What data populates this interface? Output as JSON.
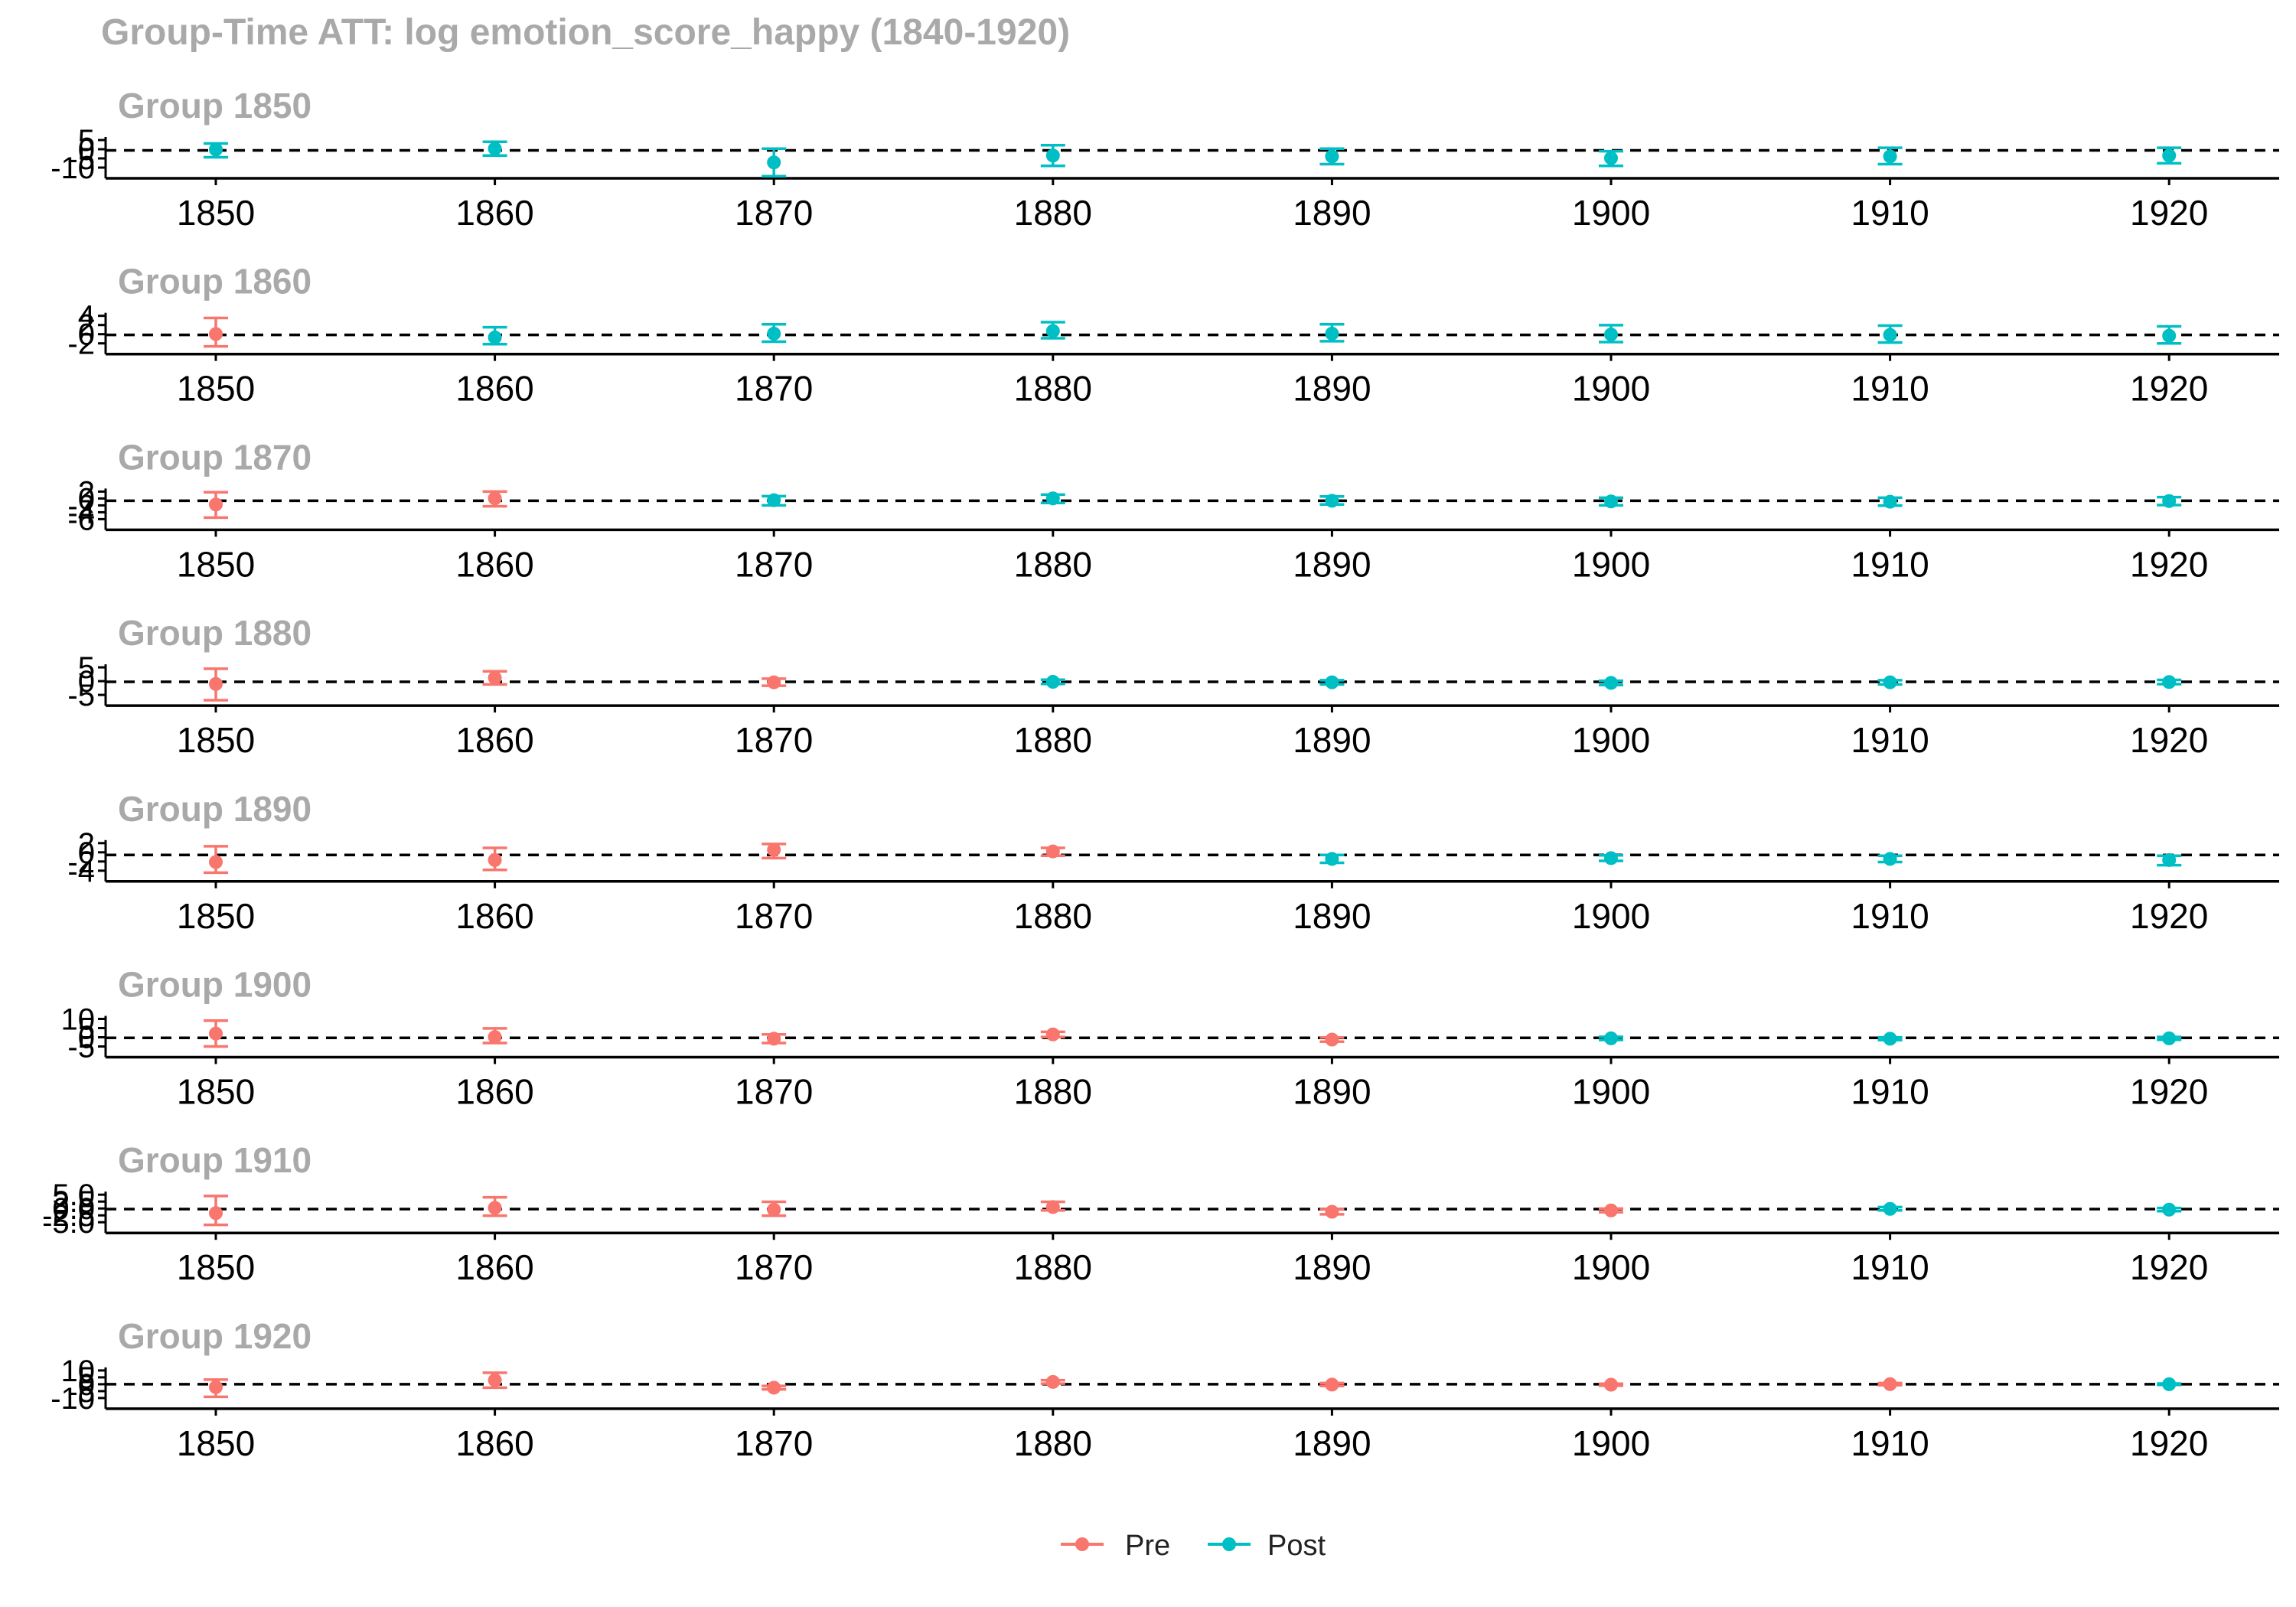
{
  "chart_data": {
    "type": "scatter",
    "title": "Group-Time ATT: log emotion_score_happy (1840-1920)",
    "x_ticks": [
      "1850",
      "1860",
      "1870",
      "1880",
      "1890",
      "1900",
      "1910",
      "1920"
    ],
    "reference_line_y": 0,
    "legend": {
      "position": "bottom",
      "items": [
        {
          "label": "Pre",
          "color": "#F8766D"
        },
        {
          "label": "Post",
          "color": "#00BFC4"
        }
      ]
    },
    "colors": {
      "pre": "#F8766D",
      "post": "#00BFC4",
      "point": "#555555"
    },
    "panels": [
      {
        "title": "Group 1850",
        "ylim": [
          -10,
          6
        ],
        "y_ticks": [
          "5",
          "0",
          "-5",
          "-10"
        ],
        "points": [
          {
            "x": 1850,
            "y": 0.5,
            "lo": -4,
            "hi": 4,
            "period": "Post"
          },
          {
            "x": 1860,
            "y": 1.0,
            "lo": -3,
            "hi": 5,
            "period": "Post"
          },
          {
            "x": 1870,
            "y": -7.0,
            "lo": -15,
            "hi": 1,
            "period": "Post"
          },
          {
            "x": 1880,
            "y": -3.0,
            "lo": -9,
            "hi": 3,
            "period": "Post"
          },
          {
            "x": 1890,
            "y": -3.5,
            "lo": -8,
            "hi": 1,
            "period": "Post"
          },
          {
            "x": 1900,
            "y": -4.5,
            "lo": -9,
            "hi": -0.5,
            "period": "Post"
          },
          {
            "x": 1910,
            "y": -3.5,
            "lo": -8,
            "hi": 1.5,
            "period": "Post"
          },
          {
            "x": 1920,
            "y": -3.0,
            "lo": -7.5,
            "hi": 1.5,
            "period": "Post"
          }
        ]
      },
      {
        "title": "Group 1860",
        "ylim": [
          -2,
          4.5
        ],
        "y_ticks": [
          "4",
          "2",
          "0",
          "-2"
        ],
        "points": [
          {
            "x": 1850,
            "y": 0.2,
            "lo": -2.7,
            "hi": 4.0,
            "period": "Pre"
          },
          {
            "x": 1860,
            "y": -0.6,
            "lo": -2.2,
            "hi": 1.8,
            "period": "Post"
          },
          {
            "x": 1870,
            "y": 0.3,
            "lo": -1.6,
            "hi": 2.5,
            "period": "Post"
          },
          {
            "x": 1880,
            "y": 0.9,
            "lo": -0.8,
            "hi": 3.0,
            "period": "Post"
          },
          {
            "x": 1890,
            "y": 0.3,
            "lo": -1.5,
            "hi": 2.5,
            "period": "Post"
          },
          {
            "x": 1900,
            "y": 0.1,
            "lo": -1.7,
            "hi": 2.3,
            "period": "Post"
          },
          {
            "x": 1910,
            "y": 0.0,
            "lo": -1.8,
            "hi": 2.2,
            "period": "Post"
          },
          {
            "x": 1920,
            "y": -0.2,
            "lo": -2.0,
            "hi": 2.0,
            "period": "Post"
          }
        ]
      },
      {
        "title": "Group 1870",
        "ylim": [
          -6,
          3
        ],
        "y_ticks": [
          "2",
          "0",
          "-2",
          "-4",
          "-6"
        ],
        "points": [
          {
            "x": 1850,
            "y": -1.2,
            "lo": -5.5,
            "hi": 2.8,
            "period": "Pre"
          },
          {
            "x": 1860,
            "y": 0.8,
            "lo": -1.8,
            "hi": 3.0,
            "period": "Pre"
          },
          {
            "x": 1870,
            "y": 0.2,
            "lo": -1.5,
            "hi": 1.5,
            "period": "Post"
          },
          {
            "x": 1880,
            "y": 0.8,
            "lo": -0.7,
            "hi": 2.0,
            "period": "Post"
          },
          {
            "x": 1890,
            "y": 0.0,
            "lo": -1.2,
            "hi": 1.4,
            "period": "Post"
          },
          {
            "x": 1900,
            "y": -0.2,
            "lo": -1.5,
            "hi": 1.0,
            "period": "Post"
          },
          {
            "x": 1910,
            "y": -0.3,
            "lo": -1.6,
            "hi": 1.0,
            "period": "Post"
          },
          {
            "x": 1920,
            "y": -0.1,
            "lo": -1.4,
            "hi": 1.2,
            "period": "Post"
          }
        ]
      },
      {
        "title": "Group 1880",
        "ylim": [
          -5,
          5.5
        ],
        "y_ticks": [
          "5",
          "0",
          "-5"
        ],
        "points": [
          {
            "x": 1850,
            "y": -0.8,
            "lo": -7,
            "hi": 5,
            "period": "Pre"
          },
          {
            "x": 1860,
            "y": 1.5,
            "lo": -1,
            "hi": 4,
            "period": "Pre"
          },
          {
            "x": 1870,
            "y": -0.2,
            "lo": -1.5,
            "hi": 1.2,
            "period": "Pre"
          },
          {
            "x": 1880,
            "y": 0.0,
            "lo": -0.8,
            "hi": 0.8,
            "period": "Post"
          },
          {
            "x": 1890,
            "y": -0.2,
            "lo": -1,
            "hi": 0.6,
            "period": "Post"
          },
          {
            "x": 1900,
            "y": -0.4,
            "lo": -1.2,
            "hi": 0.4,
            "period": "Post"
          },
          {
            "x": 1910,
            "y": -0.2,
            "lo": -1.0,
            "hi": 0.6,
            "period": "Post"
          },
          {
            "x": 1920,
            "y": -0.1,
            "lo": -0.9,
            "hi": 0.7,
            "period": "Post"
          }
        ]
      },
      {
        "title": "Group 1890",
        "ylim": [
          -4,
          3
        ],
        "y_ticks": [
          "2",
          "0",
          "-2",
          "-4"
        ],
        "points": [
          {
            "x": 1850,
            "y": -1.8,
            "lo": -4.5,
            "hi": 2.2,
            "period": "Pre"
          },
          {
            "x": 1860,
            "y": -1.3,
            "lo": -3.8,
            "hi": 1.8,
            "period": "Pre"
          },
          {
            "x": 1870,
            "y": 1.3,
            "lo": -0.8,
            "hi": 2.8,
            "period": "Pre"
          },
          {
            "x": 1880,
            "y": 0.9,
            "lo": -0.2,
            "hi": 1.8,
            "period": "Pre"
          },
          {
            "x": 1890,
            "y": -1.0,
            "lo": -2.0,
            "hi": 0.0,
            "period": "Post"
          },
          {
            "x": 1900,
            "y": -0.8,
            "lo": -1.5,
            "hi": -0.1,
            "period": "Post"
          },
          {
            "x": 1910,
            "y": -1.0,
            "lo": -1.8,
            "hi": -0.2,
            "period": "Post"
          },
          {
            "x": 1920,
            "y": -1.3,
            "lo": -2.6,
            "hi": -0.2,
            "period": "Post"
          }
        ]
      },
      {
        "title": "Group 1900",
        "ylim": [
          -5,
          11
        ],
        "y_ticks": [
          "10",
          "5",
          "0",
          "-5"
        ],
        "points": [
          {
            "x": 1850,
            "y": 2.5,
            "lo": -5,
            "hi": 10,
            "period": "Pre"
          },
          {
            "x": 1860,
            "y": 0.5,
            "lo": -3,
            "hi": 5.5,
            "period": "Pre"
          },
          {
            "x": 1870,
            "y": -0.5,
            "lo": -3,
            "hi": 2,
            "period": "Pre"
          },
          {
            "x": 1880,
            "y": 2.0,
            "lo": 0.5,
            "hi": 3.5,
            "period": "Pre"
          },
          {
            "x": 1890,
            "y": -1.0,
            "lo": -2.2,
            "hi": 0.2,
            "period": "Pre"
          },
          {
            "x": 1900,
            "y": -0.3,
            "lo": -1.2,
            "hi": 0.6,
            "period": "Post"
          },
          {
            "x": 1910,
            "y": -0.5,
            "lo": -1.3,
            "hi": 0.3,
            "period": "Post"
          },
          {
            "x": 1920,
            "y": -0.3,
            "lo": -1.1,
            "hi": 0.5,
            "period": "Post"
          }
        ]
      },
      {
        "title": "Group 1910",
        "ylim": [
          -5,
          5.5
        ],
        "y_ticks": [
          "5.0",
          "2.5",
          "0.0",
          "-2.5",
          "-5.0"
        ],
        "points": [
          {
            "x": 1850,
            "y": -1.5,
            "lo": -6,
            "hi": 5,
            "period": "Pre"
          },
          {
            "x": 1860,
            "y": 0.5,
            "lo": -2.5,
            "hi": 4.5,
            "period": "Pre"
          },
          {
            "x": 1870,
            "y": -0.2,
            "lo": -2.5,
            "hi": 2.8,
            "period": "Pre"
          },
          {
            "x": 1880,
            "y": 0.8,
            "lo": -0.5,
            "hi": 2.8,
            "period": "Pre"
          },
          {
            "x": 1890,
            "y": -1.0,
            "lo": -2.0,
            "hi": 0.0,
            "period": "Pre"
          },
          {
            "x": 1900,
            "y": -0.5,
            "lo": -1.2,
            "hi": 0.2,
            "period": "Pre"
          },
          {
            "x": 1910,
            "y": 0.1,
            "lo": -0.5,
            "hi": 0.8,
            "period": "Post"
          },
          {
            "x": 1920,
            "y": -0.2,
            "lo": -0.8,
            "hi": 0.4,
            "period": "Post"
          }
        ]
      },
      {
        "title": "Group 1920",
        "ylim": [
          -12,
          12
        ],
        "y_ticks": [
          "10",
          "5",
          "0",
          "-5",
          "-10"
        ],
        "points": [
          {
            "x": 1850,
            "y": -2.5,
            "lo": -11,
            "hi": 4,
            "period": "Pre"
          },
          {
            "x": 1860,
            "y": 3.5,
            "lo": -3,
            "hi": 10,
            "period": "Pre"
          },
          {
            "x": 1870,
            "y": -3.0,
            "lo": -4.5,
            "hi": -1.5,
            "period": "Pre"
          },
          {
            "x": 1880,
            "y": 2.0,
            "lo": 0.5,
            "hi": 3.5,
            "period": "Pre"
          },
          {
            "x": 1890,
            "y": -0.3,
            "lo": -1.5,
            "hi": 1.0,
            "period": "Pre"
          },
          {
            "x": 1900,
            "y": -0.4,
            "lo": -1.2,
            "hi": 0.4,
            "period": "Pre"
          },
          {
            "x": 1910,
            "y": 0.1,
            "lo": -0.8,
            "hi": 1.0,
            "period": "Pre"
          },
          {
            "x": 1920,
            "y": 0.0,
            "lo": -0.6,
            "hi": 0.6,
            "period": "Post"
          }
        ]
      }
    ]
  }
}
